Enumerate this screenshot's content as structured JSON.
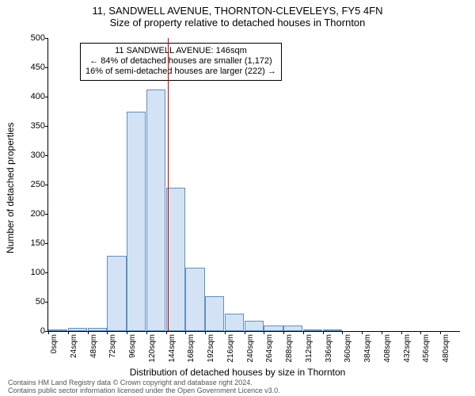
{
  "title": "11, SANDWELL AVENUE, THORNTON-CLEVELEYS, FY5 4FN",
  "subtitle": "Size of property relative to detached houses in Thornton",
  "y_axis_label": "Number of detached properties",
  "x_axis_label": "Distribution of detached houses by size in Thornton",
  "chart": {
    "type": "histogram",
    "ylim": [
      0,
      500
    ],
    "ytick_step": 50,
    "bar_fill": "#d3e3f5",
    "bar_border": "#6090c0",
    "background_color": "#ffffff",
    "ref_line_color": "#cc0000",
    "ref_line_x_bin_index": 6,
    "categories": [
      "0sqm",
      "24sqm",
      "48sqm",
      "72sqm",
      "96sqm",
      "120sqm",
      "144sqm",
      "168sqm",
      "192sqm",
      "216sqm",
      "240sqm",
      "264sqm",
      "288sqm",
      "312sqm",
      "336sqm",
      "360sqm",
      "384sqm",
      "408sqm",
      "432sqm",
      "456sqm",
      "480sqm"
    ],
    "values": [
      2,
      5,
      5,
      128,
      375,
      412,
      245,
      108,
      60,
      30,
      18,
      10,
      10,
      3,
      2,
      0,
      0,
      0,
      0,
      0,
      0
    ]
  },
  "annotation": {
    "line1": "11 SANDWELL AVENUE: 146sqm",
    "line2": "← 84% of detached houses are smaller (1,172)",
    "line3": "16% of semi-detached houses are larger (222) →"
  },
  "footer": {
    "line1": "Contains HM Land Registry data © Crown copyright and database right 2024.",
    "line2": "Contains public sector information licensed under the Open Government Licence v3.0."
  }
}
